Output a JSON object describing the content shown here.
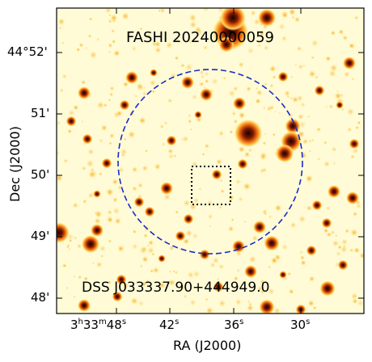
{
  "figure": {
    "title": "FASHI 20240000059",
    "survey_label": "DSS J033337.90+444949.0",
    "x_axis_label": "RA (J2000)",
    "y_axis_label": "Dec (J2000)",
    "ra_ticks": [
      {
        "h": "3",
        "m": "33",
        "s": "48",
        "full": true
      },
      {
        "s": "42"
      },
      {
        "s": "36"
      },
      {
        "s": "30"
      }
    ],
    "dec_ticks": [
      "44°52'",
      "51'",
      "50'",
      "49'",
      "48'"
    ],
    "colors": {
      "background": "#fffbd6",
      "beam_circle": "#1a2ac8",
      "box": "#000000",
      "star_core": "#2a0500",
      "star_halo": "#e85a00"
    }
  }
}
